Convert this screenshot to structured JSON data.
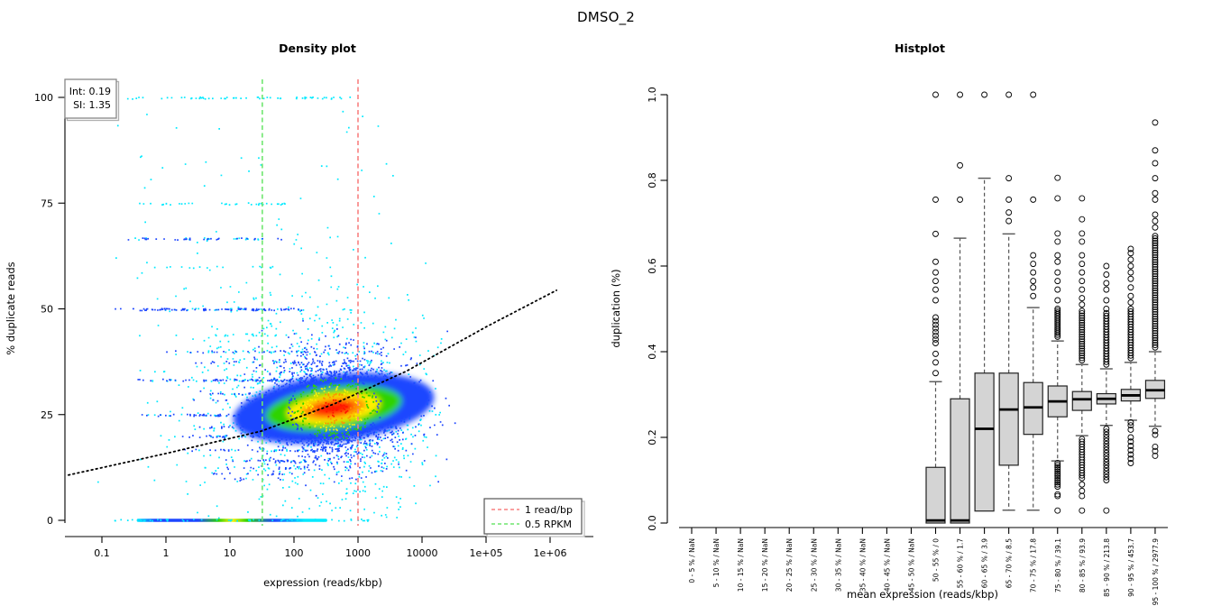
{
  "figure": {
    "title": "DMSO_2",
    "background": "#ffffff"
  },
  "chart_data": [
    {
      "type": "scatter",
      "name": "density-plot",
      "title": "Density plot",
      "xlabel": "expression (reads/kbp)",
      "ylabel": "% duplicate reads",
      "x_scale": "log10",
      "xtick_labels": [
        "0.1",
        "1",
        "10",
        "100",
        "1000",
        "10000",
        "1e+05",
        "1e+06"
      ],
      "xtick_values": [
        0.1,
        1,
        10,
        100,
        1000,
        10000,
        100000,
        1000000
      ],
      "ytick_labels": [
        "0",
        "25",
        "50",
        "75",
        "100"
      ],
      "ytick_values": [
        0,
        25,
        50,
        75,
        100
      ],
      "ylim": [
        0,
        100
      ],
      "annotation_box": {
        "lines": [
          "Int: 0.19",
          "SI: 1.35"
        ]
      },
      "legend": {
        "position": "bottomright",
        "entries": [
          {
            "label": "1 read/bp",
            "color": "#f88080",
            "style": "dashed"
          },
          {
            "label": "0.5 RPKM",
            "color": "#6fe66f",
            "style": "dashed"
          }
        ]
      },
      "vlines": [
        {
          "x": 1000,
          "color": "#f88080",
          "meaning": "1 read/bp"
        },
        {
          "x": 32,
          "color": "#6fe66f",
          "meaning": "0.5 RPKM"
        }
      ],
      "fit_line": {
        "color": "#000000",
        "style": "dotted",
        "points_expression_pct": [
          [
            0.03,
            10.7
          ],
          [
            1,
            15.8
          ],
          [
            31,
            21.1
          ],
          [
            420,
            27.5
          ],
          [
            5600,
            35.2
          ],
          [
            102000,
            45.8
          ],
          [
            1260000,
            54.4
          ]
        ]
      },
      "density_palette": [
        "#00eaff",
        "#1d46ff",
        "#2ed300",
        "#fff000",
        "#ff9000",
        "#ff1400"
      ],
      "cloud": {
        "center_expression": 420,
        "center_pct": 26.5,
        "sd_log10": 0.55,
        "sd_pct": 6.2,
        "n_core": 2300,
        "n_halo": 850
      },
      "streaks": [
        {
          "pct": 100,
          "e_min": 0.09,
          "e_max": 800,
          "n": 60,
          "tone": "cyan"
        },
        {
          "pct": 75,
          "e_min": 0.3,
          "e_max": 90,
          "n": 34,
          "tone": "cyan"
        },
        {
          "pct": 66.7,
          "e_min": 0.22,
          "e_max": 85,
          "n": 50,
          "tone": "mix"
        },
        {
          "pct": 60,
          "e_min": 0.6,
          "e_max": 50,
          "n": 16,
          "tone": "cyan"
        },
        {
          "pct": 50,
          "e_min": 0.15,
          "e_max": 130,
          "n": 120,
          "tone": "blue"
        },
        {
          "pct": 44,
          "e_min": 2,
          "e_max": 60,
          "n": 14,
          "tone": "cyan"
        },
        {
          "pct": 40,
          "e_min": 0.9,
          "e_max": 150,
          "n": 40,
          "tone": "mix"
        },
        {
          "pct": 37.5,
          "e_min": 2.5,
          "e_max": 120,
          "n": 22,
          "tone": "blue"
        },
        {
          "pct": 33.3,
          "e_min": 0.35,
          "e_max": 220,
          "n": 85,
          "tone": "blue"
        },
        {
          "pct": 30,
          "e_min": 3,
          "e_max": 200,
          "n": 25,
          "tone": "blue"
        },
        {
          "pct": 28.6,
          "e_min": 2.2,
          "e_max": 250,
          "n": 35,
          "tone": "blue"
        },
        {
          "pct": 25,
          "e_min": 0.4,
          "e_max": 300,
          "n": 85,
          "tone": "blue"
        },
        {
          "pct": 22.2,
          "e_min": 3,
          "e_max": 280,
          "n": 30,
          "tone": "blue"
        },
        {
          "pct": 20,
          "e_min": 1.2,
          "e_max": 320,
          "n": 45,
          "tone": "blue"
        },
        {
          "pct": 16.7,
          "e_min": 1.5,
          "e_max": 260,
          "n": 38,
          "tone": "blue"
        },
        {
          "pct": 14.3,
          "e_min": 2.5,
          "e_max": 180,
          "n": 26,
          "tone": "blue"
        },
        {
          "pct": 12.5,
          "e_min": 3.5,
          "e_max": 130,
          "n": 18,
          "tone": "blue"
        },
        {
          "pct": 11.1,
          "e_min": 5,
          "e_max": 90,
          "n": 13,
          "tone": "blue"
        },
        {
          "pct": 10,
          "e_min": 6,
          "e_max": 70,
          "n": 9,
          "tone": "blue"
        }
      ],
      "zero_band": {
        "pct": 0,
        "e_min": 0.35,
        "e_max": 330,
        "tail_e_min": 0.12,
        "tail_e_max": 1500,
        "n_tail": 60
      }
    },
    {
      "type": "boxplot",
      "name": "histplot",
      "title": "Histplot",
      "xlabel": "mean expression (reads/kbp)",
      "ylabel": "duplication (%)",
      "ylim": [
        0,
        1
      ],
      "ytick_labels": [
        "0.0",
        "0.2",
        "0.4",
        "0.6",
        "0.8",
        "1.0"
      ],
      "ytick_values": [
        0,
        0.2,
        0.4,
        0.6,
        0.8,
        1
      ],
      "box_fill": "#d4d4d4",
      "categories": [
        "0 - 5 % / NaN",
        "5 - 10 % / NaN",
        "10 - 15 % / NaN",
        "15 - 20 % / NaN",
        "20 - 25 % / NaN",
        "25 - 30 % / NaN",
        "30 - 35 % / NaN",
        "35 - 40 % / NaN",
        "40 - 45 % / NaN",
        "45 - 50 % / NaN",
        "50 - 55 % / 0",
        "55 - 60 % / 1.7",
        "60 - 65 % / 3.9",
        "65 - 70 % / 8.5",
        "70 - 75 % / 17.8",
        "75 - 80 % / 39.1",
        "80 - 85 % / 93.9",
        "85 - 90 % / 213.8",
        "90 - 95 % / 453.7",
        "95 - 100 % / 2977.9"
      ],
      "boxes": [
        null,
        null,
        null,
        null,
        null,
        null,
        null,
        null,
        null,
        null,
        {
          "low": 0,
          "q1": 0,
          "median": 0.006,
          "q3": 0.13,
          "high": 0.33,
          "outliers": [
            0.35,
            0.375,
            0.395,
            0.52,
            0.545,
            0.565,
            0.585,
            0.61,
            0.675,
            0.755,
            1.0
          ],
          "outlier_bands": [
            {
              "from": 0.42,
              "to": 0.48,
              "n": 8
            }
          ]
        },
        {
          "low": 0,
          "q1": 0,
          "median": 0.006,
          "q3": 0.29,
          "high": 0.665,
          "outliers": [
            0.755,
            0.835,
            1.0
          ],
          "outlier_bands": []
        },
        {
          "low": 0.028,
          "q1": 0.028,
          "median": 0.22,
          "q3": 0.35,
          "high": 0.805,
          "outliers": [
            1.0
          ],
          "outlier_bands": []
        },
        {
          "low": 0.03,
          "q1": 0.135,
          "median": 0.265,
          "q3": 0.35,
          "high": 0.675,
          "outliers": [
            0.705,
            0.725,
            0.755,
            0.805,
            1.0
          ],
          "outlier_bands": []
        },
        {
          "low": 0.03,
          "q1": 0.207,
          "median": 0.27,
          "q3": 0.328,
          "high": 0.503,
          "outliers": [
            0.53,
            0.55,
            0.565,
            0.585,
            0.605,
            0.625,
            0.755,
            1.0
          ],
          "outlier_bands": []
        },
        {
          "low": 0.145,
          "q1": 0.248,
          "median": 0.284,
          "q3": 0.32,
          "high": 0.425,
          "outliers": [
            0.52,
            0.545,
            0.565,
            0.585,
            0.61,
            0.625,
            0.657,
            0.676,
            0.758,
            0.806,
            0.067,
            0.063,
            0.029
          ],
          "outlier_bands": [
            {
              "from": 0.435,
              "to": 0.5,
              "n": 16
            },
            {
              "from": 0.085,
              "to": 0.14,
              "n": 12
            }
          ]
        },
        {
          "low": 0.204,
          "q1": 0.263,
          "median": 0.289,
          "q3": 0.307,
          "high": 0.37,
          "outliers": [
            0.51,
            0.525,
            0.545,
            0.565,
            0.585,
            0.605,
            0.625,
            0.657,
            0.676,
            0.709,
            0.758,
            0.09,
            0.075,
            0.063,
            0.029
          ],
          "outlier_bands": [
            {
              "from": 0.38,
              "to": 0.495,
              "n": 22
            },
            {
              "from": 0.105,
              "to": 0.196,
              "n": 16
            }
          ]
        },
        {
          "low": 0.228,
          "q1": 0.278,
          "median": 0.29,
          "q3": 0.302,
          "high": 0.36,
          "outliers": [
            0.5,
            0.52,
            0.545,
            0.56,
            0.58,
            0.6,
            0.029
          ],
          "outlier_bands": [
            {
              "from": 0.37,
              "to": 0.49,
              "n": 20
            },
            {
              "from": 0.1,
              "to": 0.22,
              "n": 18
            }
          ]
        },
        {
          "low": 0.24,
          "q1": 0.285,
          "median": 0.298,
          "q3": 0.312,
          "high": 0.375,
          "outliers": [
            0.515,
            0.53,
            0.55,
            0.57,
            0.585,
            0.6,
            0.615,
            0.63,
            0.64,
            0.235,
            0.228,
            0.218
          ],
          "outlier_bands": [
            {
              "from": 0.385,
              "to": 0.5,
              "n": 20
            },
            {
              "from": 0.14,
              "to": 0.2,
              "n": 7
            }
          ]
        },
        {
          "low": 0.226,
          "q1": 0.291,
          "median": 0.31,
          "q3": 0.333,
          "high": 0.4,
          "outliers": [
            0.69,
            0.705,
            0.72,
            0.755,
            0.77,
            0.805,
            0.84,
            0.87,
            0.935,
            0.215,
            0.206,
            0.178,
            0.168,
            0.157
          ],
          "outlier_bands": [
            {
              "from": 0.41,
              "to": 0.67,
              "n": 48
            }
          ]
        }
      ]
    }
  ]
}
